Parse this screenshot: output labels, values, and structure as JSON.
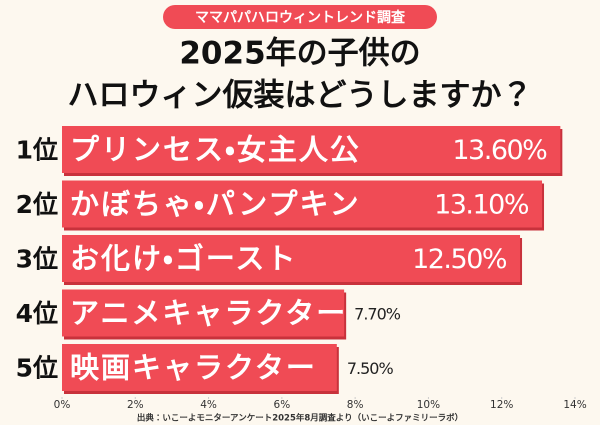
{
  "chart_data": {
    "type": "bar",
    "orientation": "horizontal",
    "badge": "ママパパハロウィントレンド調査",
    "title": [
      "2025年の子供の",
      "ハロウィン仮装はどうしますか？"
    ],
    "ranks": [
      "1位",
      "2位",
      "3位",
      "4位",
      "5位"
    ],
    "categories": [
      "プリンセス・女主人公",
      "かぼちゃ・パンプキン",
      "お化け・ゴースト",
      "アニメキャラクター",
      "映画キャラクター"
    ],
    "values": [
      13.6,
      13.1,
      12.5,
      7.7,
      7.5
    ],
    "value_labels": [
      "13.60%",
      "13.10%",
      "12.50%",
      "7.70%",
      "7.50%"
    ],
    "color": "#f04b55",
    "xlim": [
      0,
      14
    ],
    "xticks": [
      {
        "value": 0,
        "label": "0%"
      },
      {
        "value": 2,
        "label": "2%"
      },
      {
        "value": 4,
        "label": "4%"
      },
      {
        "value": 6,
        "label": "6%"
      },
      {
        "value": 8,
        "label": "8%"
      },
      {
        "value": 10,
        "label": "10%"
      },
      {
        "value": 12,
        "label": "12%"
      },
      {
        "value": 14,
        "label": "14%"
      }
    ],
    "source": "出典：いこーよモニターアンケート2025年8月調査より（いこーよファミリーラボ）"
  }
}
